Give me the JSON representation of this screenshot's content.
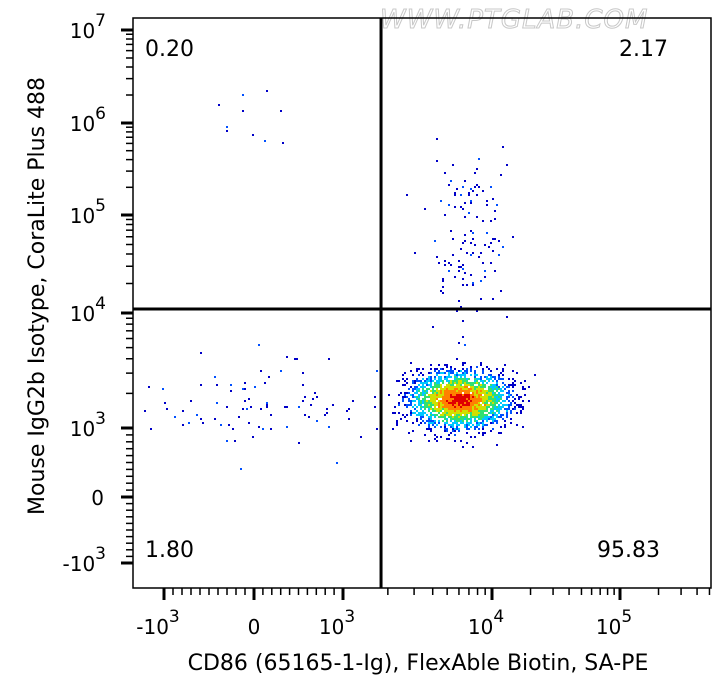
{
  "chart_data": {
    "type": "scatter",
    "title": "",
    "xlabel": "CD86 (65165-1-Ig), FlexAble Biotin, SA-PE",
    "ylabel": "Mouse IgG2b Isotype, CoraLite Plus 488",
    "watermark": "WWW.PTGLAB.COM",
    "x_scale": "biexponential",
    "y_scale": "biexponential",
    "xlim": [
      -1500,
      400000
    ],
    "ylim": [
      -1500,
      10000000
    ],
    "x_ticks": [
      {
        "value": -1000,
        "base": "-10",
        "exp": "3"
      },
      {
        "value": 0,
        "base": "0",
        "exp": ""
      },
      {
        "value": 1000,
        "base": "10",
        "exp": "3"
      },
      {
        "value": 10000,
        "base": "10",
        "exp": "4"
      },
      {
        "value": 100000,
        "base": "10",
        "exp": "5"
      }
    ],
    "y_ticks": [
      {
        "value": -1000,
        "base": "-10",
        "exp": "3"
      },
      {
        "value": 0,
        "base": "0",
        "exp": ""
      },
      {
        "value": 1000,
        "base": "10",
        "exp": "3"
      },
      {
        "value": 10000,
        "base": "10",
        "exp": "4"
      },
      {
        "value": 100000,
        "base": "10",
        "exp": "5"
      },
      {
        "value": 1000000,
        "base": "10",
        "exp": "6"
      },
      {
        "value": 10000000,
        "base": "10",
        "exp": "7"
      }
    ],
    "gates": {
      "x": 1800,
      "y": 11000
    },
    "quadrants": {
      "upper_left": "0.20",
      "upper_right": "2.17",
      "lower_left": "1.80",
      "lower_right": "95.83"
    },
    "populations": [
      {
        "name": "main",
        "x_center": 6000,
        "y_center": 1800,
        "count": 2600,
        "x_sd_decades": 0.17,
        "y_sd_decades": 0.12
      },
      {
        "name": "upper-tail",
        "x_center": 7000,
        "y_center": 60000,
        "count": 130,
        "x_sd_decades": 0.14,
        "y_sd_decades": 0.5
      },
      {
        "name": "lower-left",
        "x_center": 200,
        "y_center": 1500,
        "count": 90,
        "x_sd_linear": 700,
        "y_sd_decades": 0.2
      },
      {
        "name": "upper-left",
        "x_center": -200,
        "y_center": 900000,
        "count": 10,
        "x_sd_linear": 300,
        "y_sd_decades": 0.25
      }
    ],
    "density_colors": [
      "#0000c8",
      "#0050ff",
      "#00c8ff",
      "#30e070",
      "#d0e000",
      "#ff8000",
      "#e00000"
    ]
  }
}
